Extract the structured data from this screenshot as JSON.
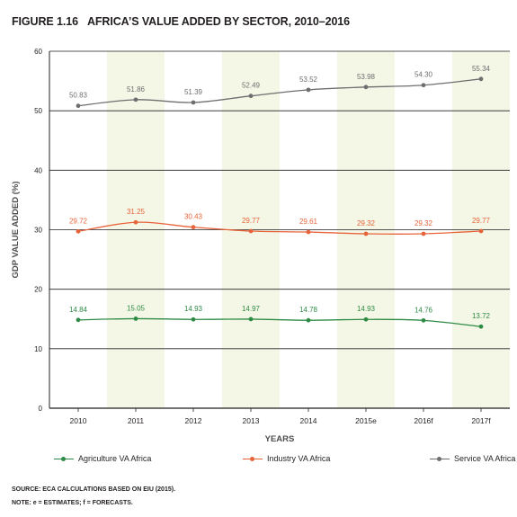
{
  "figure": {
    "number": "FIGURE 1.16",
    "title": "AFRICA’S VALUE ADDED BY SECTOR, 2010–2016"
  },
  "chart_data": {
    "type": "line",
    "categories": [
      "2010",
      "2011",
      "2012",
      "2013",
      "2014",
      "2015e",
      "2016f",
      "2017f"
    ],
    "series": [
      {
        "name": "Agriculture VA Africa",
        "color": "#2e8b45",
        "values": [
          14.84,
          15.05,
          14.93,
          14.97,
          14.78,
          14.93,
          14.76,
          13.72
        ],
        "labels": [
          "14.84",
          "15.05",
          "14.93",
          "14.97",
          "14.78",
          "14.93",
          "14.76",
          "13.72"
        ]
      },
      {
        "name": "Industry VA Africa",
        "color": "#e8633a",
        "values": [
          29.72,
          31.25,
          30.43,
          29.77,
          29.61,
          29.32,
          29.32,
          29.77
        ],
        "labels": [
          "29.72",
          "31.25",
          "30.43",
          "29.77",
          "29.61",
          "29.32",
          "29.32",
          "29.77"
        ]
      },
      {
        "name": "Service VA Africa",
        "color": "#6d6e70",
        "values": [
          50.83,
          51.86,
          51.39,
          52.49,
          53.52,
          53.98,
          54.3,
          55.34
        ],
        "labels": [
          "50.83",
          "51.86",
          "51.39",
          "52.49",
          "53.52",
          "53.98",
          "54.30",
          "55.34"
        ]
      }
    ],
    "xlabel": "YEARS",
    "ylabel": "GDP VALUE ADDED (%)",
    "ylim": [
      0,
      60
    ],
    "yticks": [
      "0",
      "10",
      "20",
      "30",
      "40",
      "50",
      "60"
    ],
    "grid": true,
    "band_color": "#f4f7e6",
    "legend_position": "bottom"
  },
  "notes": {
    "source": "SOURCE: ECA CALCULATIONS BASED ON EIU (2015).",
    "note": "NOTE: e = ESTIMATES; f = FORECASTS."
  }
}
